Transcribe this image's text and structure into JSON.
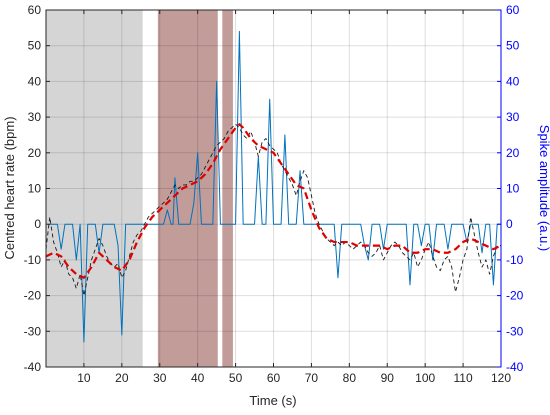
{
  "chart_data": {
    "type": "line",
    "xlabel": "Time (s)",
    "ylabel": "Centred heart rate (bpm)",
    "y2label": "Spike amplitude (a.u.)",
    "xlim": [
      0,
      120
    ],
    "ylim": [
      -40,
      60
    ],
    "y2lim": [
      -40,
      60
    ],
    "xticks": [
      10,
      20,
      30,
      40,
      50,
      60,
      70,
      80,
      90,
      100,
      110,
      120
    ],
    "yticks": [
      -40,
      -30,
      -20,
      -10,
      0,
      10,
      20,
      30,
      40,
      50,
      60
    ],
    "y2ticks": [
      -40,
      -30,
      -20,
      -10,
      0,
      10,
      20,
      30,
      40,
      50,
      60
    ],
    "grid": true,
    "colors": {
      "spike": "#0072bd",
      "smooth": "#e00000",
      "raw": "#1a1a1a",
      "shade_gray": "#d3d3d3",
      "shade_brown": "#9a5a55",
      "right_axis": "#0000ff"
    },
    "shaded_regions": [
      {
        "x0": 0,
        "x1": 25.5,
        "color": "gray"
      },
      {
        "x0": 29.5,
        "x1": 45.3,
        "color": "brown"
      },
      {
        "x0": 46.5,
        "x1": 49.3,
        "color": "brown"
      }
    ],
    "series": [
      {
        "style": "solid-thin",
        "axis": "right",
        "points": [
          [
            1,
            0
          ],
          [
            3,
            0
          ],
          [
            4,
            -7
          ],
          [
            5,
            0
          ],
          [
            7,
            0
          ],
          [
            8,
            -10
          ],
          [
            9,
            0
          ],
          [
            10,
            -33
          ],
          [
            11,
            0
          ],
          [
            13,
            0
          ],
          [
            14,
            -8
          ],
          [
            15,
            0
          ],
          [
            18,
            0
          ],
          [
            19,
            -6
          ],
          [
            20,
            -31
          ],
          [
            21,
            0
          ],
          [
            26,
            0
          ],
          [
            29,
            0
          ],
          [
            31,
            0
          ],
          [
            32,
            4
          ],
          [
            33,
            0
          ],
          [
            33.5,
            0
          ],
          [
            34,
            13
          ],
          [
            35,
            0
          ],
          [
            38,
            0
          ],
          [
            39,
            6
          ],
          [
            40,
            20
          ],
          [
            41,
            0
          ],
          [
            44,
            0
          ],
          [
            45,
            40
          ],
          [
            46,
            0
          ],
          [
            50,
            0
          ],
          [
            51,
            54
          ],
          [
            52,
            0
          ],
          [
            55,
            0
          ],
          [
            56,
            19
          ],
          [
            57,
            0
          ],
          [
            58,
            0
          ],
          [
            59,
            35
          ],
          [
            60,
            0
          ],
          [
            62,
            0
          ],
          [
            63,
            25
          ],
          [
            64,
            0
          ],
          [
            66,
            0
          ],
          [
            67,
            15
          ],
          [
            68,
            0
          ],
          [
            76,
            0
          ],
          [
            77,
            -15
          ],
          [
            78,
            0
          ],
          [
            83,
            0
          ],
          [
            84,
            -6
          ],
          [
            85,
            -10
          ],
          [
            86,
            0
          ],
          [
            88,
            0
          ],
          [
            89,
            -7
          ],
          [
            90,
            0
          ],
          [
            95,
            0
          ],
          [
            96,
            -17
          ],
          [
            97,
            0
          ],
          [
            98,
            0
          ],
          [
            99,
            -6
          ],
          [
            100,
            0
          ],
          [
            101,
            0
          ],
          [
            102,
            -10
          ],
          [
            103,
            0
          ],
          [
            105,
            0
          ],
          [
            106,
            -7
          ],
          [
            107,
            0
          ],
          [
            110,
            0
          ],
          [
            111,
            -5
          ],
          [
            112,
            0
          ],
          [
            114,
            0
          ],
          [
            115,
            -8
          ],
          [
            116,
            0
          ],
          [
            117,
            0
          ],
          [
            118,
            -17
          ],
          [
            119,
            0
          ],
          [
            120,
            0
          ]
        ]
      },
      {
        "style": "dashed-thin",
        "axis": "left",
        "points": [
          [
            0,
            -7
          ],
          [
            1,
            2
          ],
          [
            2,
            -5
          ],
          [
            3,
            -8
          ],
          [
            4,
            -12
          ],
          [
            5,
            -10
          ],
          [
            6,
            -14
          ],
          [
            7,
            -15
          ],
          [
            8,
            -18
          ],
          [
            9,
            -14
          ],
          [
            10,
            -20
          ],
          [
            11,
            -15
          ],
          [
            12,
            -10
          ],
          [
            13,
            -7
          ],
          [
            14,
            -4
          ],
          [
            15,
            -6
          ],
          [
            16,
            -9
          ],
          [
            17,
            -11
          ],
          [
            18,
            -12
          ],
          [
            19,
            -11
          ],
          [
            20,
            -15
          ],
          [
            21,
            -13
          ],
          [
            22,
            -9
          ],
          [
            23,
            -5
          ],
          [
            24,
            -3
          ],
          [
            25,
            -2
          ],
          [
            26,
            0
          ],
          [
            27,
            2
          ],
          [
            28,
            3
          ],
          [
            29,
            4
          ],
          [
            30,
            5
          ],
          [
            31,
            6
          ],
          [
            32,
            7
          ],
          [
            33,
            9
          ],
          [
            34,
            11
          ],
          [
            35,
            10
          ],
          [
            36,
            11
          ],
          [
            37,
            11
          ],
          [
            38,
            12
          ],
          [
            39,
            12
          ],
          [
            40,
            13
          ],
          [
            41,
            14
          ],
          [
            42,
            16
          ],
          [
            43,
            18
          ],
          [
            44,
            20
          ],
          [
            45,
            22
          ],
          [
            46,
            23
          ],
          [
            47,
            24
          ],
          [
            48,
            26
          ],
          [
            49,
            27
          ],
          [
            50,
            28
          ],
          [
            51,
            27
          ],
          [
            52,
            25
          ],
          [
            53,
            24
          ],
          [
            54,
            26
          ],
          [
            55,
            23
          ],
          [
            56,
            19
          ],
          [
            57,
            23
          ],
          [
            58,
            24
          ],
          [
            59,
            22
          ],
          [
            60,
            21
          ],
          [
            61,
            20
          ],
          [
            62,
            17
          ],
          [
            63,
            15
          ],
          [
            64,
            13
          ],
          [
            65,
            11
          ],
          [
            66,
            8
          ],
          [
            67,
            12
          ],
          [
            68,
            15
          ],
          [
            69,
            13
          ],
          [
            70,
            8
          ],
          [
            71,
            3
          ],
          [
            72,
            0
          ],
          [
            73,
            -2
          ],
          [
            74,
            -4
          ],
          [
            75,
            -5
          ],
          [
            76,
            -6
          ],
          [
            77,
            -5
          ],
          [
            78,
            -6
          ],
          [
            79,
            -5
          ],
          [
            80,
            -6
          ],
          [
            81,
            -7
          ],
          [
            82,
            -6
          ],
          [
            83,
            -5
          ],
          [
            84,
            -6
          ],
          [
            85,
            -8
          ],
          [
            86,
            -9
          ],
          [
            87,
            -8
          ],
          [
            88,
            -6
          ],
          [
            89,
            -10
          ],
          [
            90,
            -8
          ],
          [
            91,
            -6
          ],
          [
            92,
            -5
          ],
          [
            93,
            -6
          ],
          [
            94,
            -8
          ],
          [
            95,
            -9
          ],
          [
            96,
            -10
          ],
          [
            97,
            -8
          ],
          [
            98,
            -12
          ],
          [
            99,
            -10
          ],
          [
            100,
            -7
          ],
          [
            101,
            -5
          ],
          [
            102,
            -9
          ],
          [
            103,
            -12
          ],
          [
            104,
            -13
          ],
          [
            105,
            -10
          ],
          [
            106,
            -9
          ],
          [
            107,
            -12
          ],
          [
            108,
            -19
          ],
          [
            109,
            -15
          ],
          [
            110,
            -10
          ],
          [
            111,
            -7
          ],
          [
            112,
            2
          ],
          [
            113,
            -3
          ],
          [
            114,
            -8
          ],
          [
            115,
            -12
          ],
          [
            116,
            -10
          ],
          [
            117,
            -14
          ],
          [
            118,
            -9
          ],
          [
            119,
            -6
          ],
          [
            120,
            -6
          ]
        ]
      },
      {
        "style": "dashed-thick",
        "axis": "left",
        "points": [
          [
            0,
            -9
          ],
          [
            2,
            -8
          ],
          [
            4,
            -9
          ],
          [
            6,
            -12
          ],
          [
            8,
            -14
          ],
          [
            10,
            -15
          ],
          [
            12,
            -12
          ],
          [
            14,
            -8
          ],
          [
            16,
            -10
          ],
          [
            18,
            -12
          ],
          [
            20,
            -13
          ],
          [
            22,
            -10
          ],
          [
            24,
            -5
          ],
          [
            26,
            -1
          ],
          [
            28,
            2
          ],
          [
            30,
            4
          ],
          [
            32,
            6
          ],
          [
            34,
            8
          ],
          [
            36,
            10
          ],
          [
            38,
            11
          ],
          [
            40,
            12
          ],
          [
            42,
            14
          ],
          [
            44,
            17
          ],
          [
            46,
            21
          ],
          [
            48,
            24
          ],
          [
            50,
            27
          ],
          [
            51,
            28
          ],
          [
            52,
            27
          ],
          [
            54,
            24
          ],
          [
            56,
            22
          ],
          [
            58,
            21
          ],
          [
            60,
            20
          ],
          [
            62,
            17
          ],
          [
            64,
            14
          ],
          [
            66,
            11
          ],
          [
            68,
            10
          ],
          [
            70,
            4
          ],
          [
            72,
            -1
          ],
          [
            74,
            -4
          ],
          [
            76,
            -5
          ],
          [
            78,
            -5
          ],
          [
            80,
            -5
          ],
          [
            82,
            -6
          ],
          [
            84,
            -6
          ],
          [
            86,
            -6
          ],
          [
            88,
            -6
          ],
          [
            90,
            -7
          ],
          [
            92,
            -6
          ],
          [
            94,
            -6
          ],
          [
            96,
            -8
          ],
          [
            98,
            -8
          ],
          [
            100,
            -7
          ],
          [
            102,
            -7
          ],
          [
            104,
            -8
          ],
          [
            106,
            -8
          ],
          [
            108,
            -7
          ],
          [
            110,
            -5
          ],
          [
            112,
            -4
          ],
          [
            114,
            -5
          ],
          [
            116,
            -6
          ],
          [
            118,
            -7
          ],
          [
            120,
            -6
          ]
        ]
      }
    ]
  }
}
